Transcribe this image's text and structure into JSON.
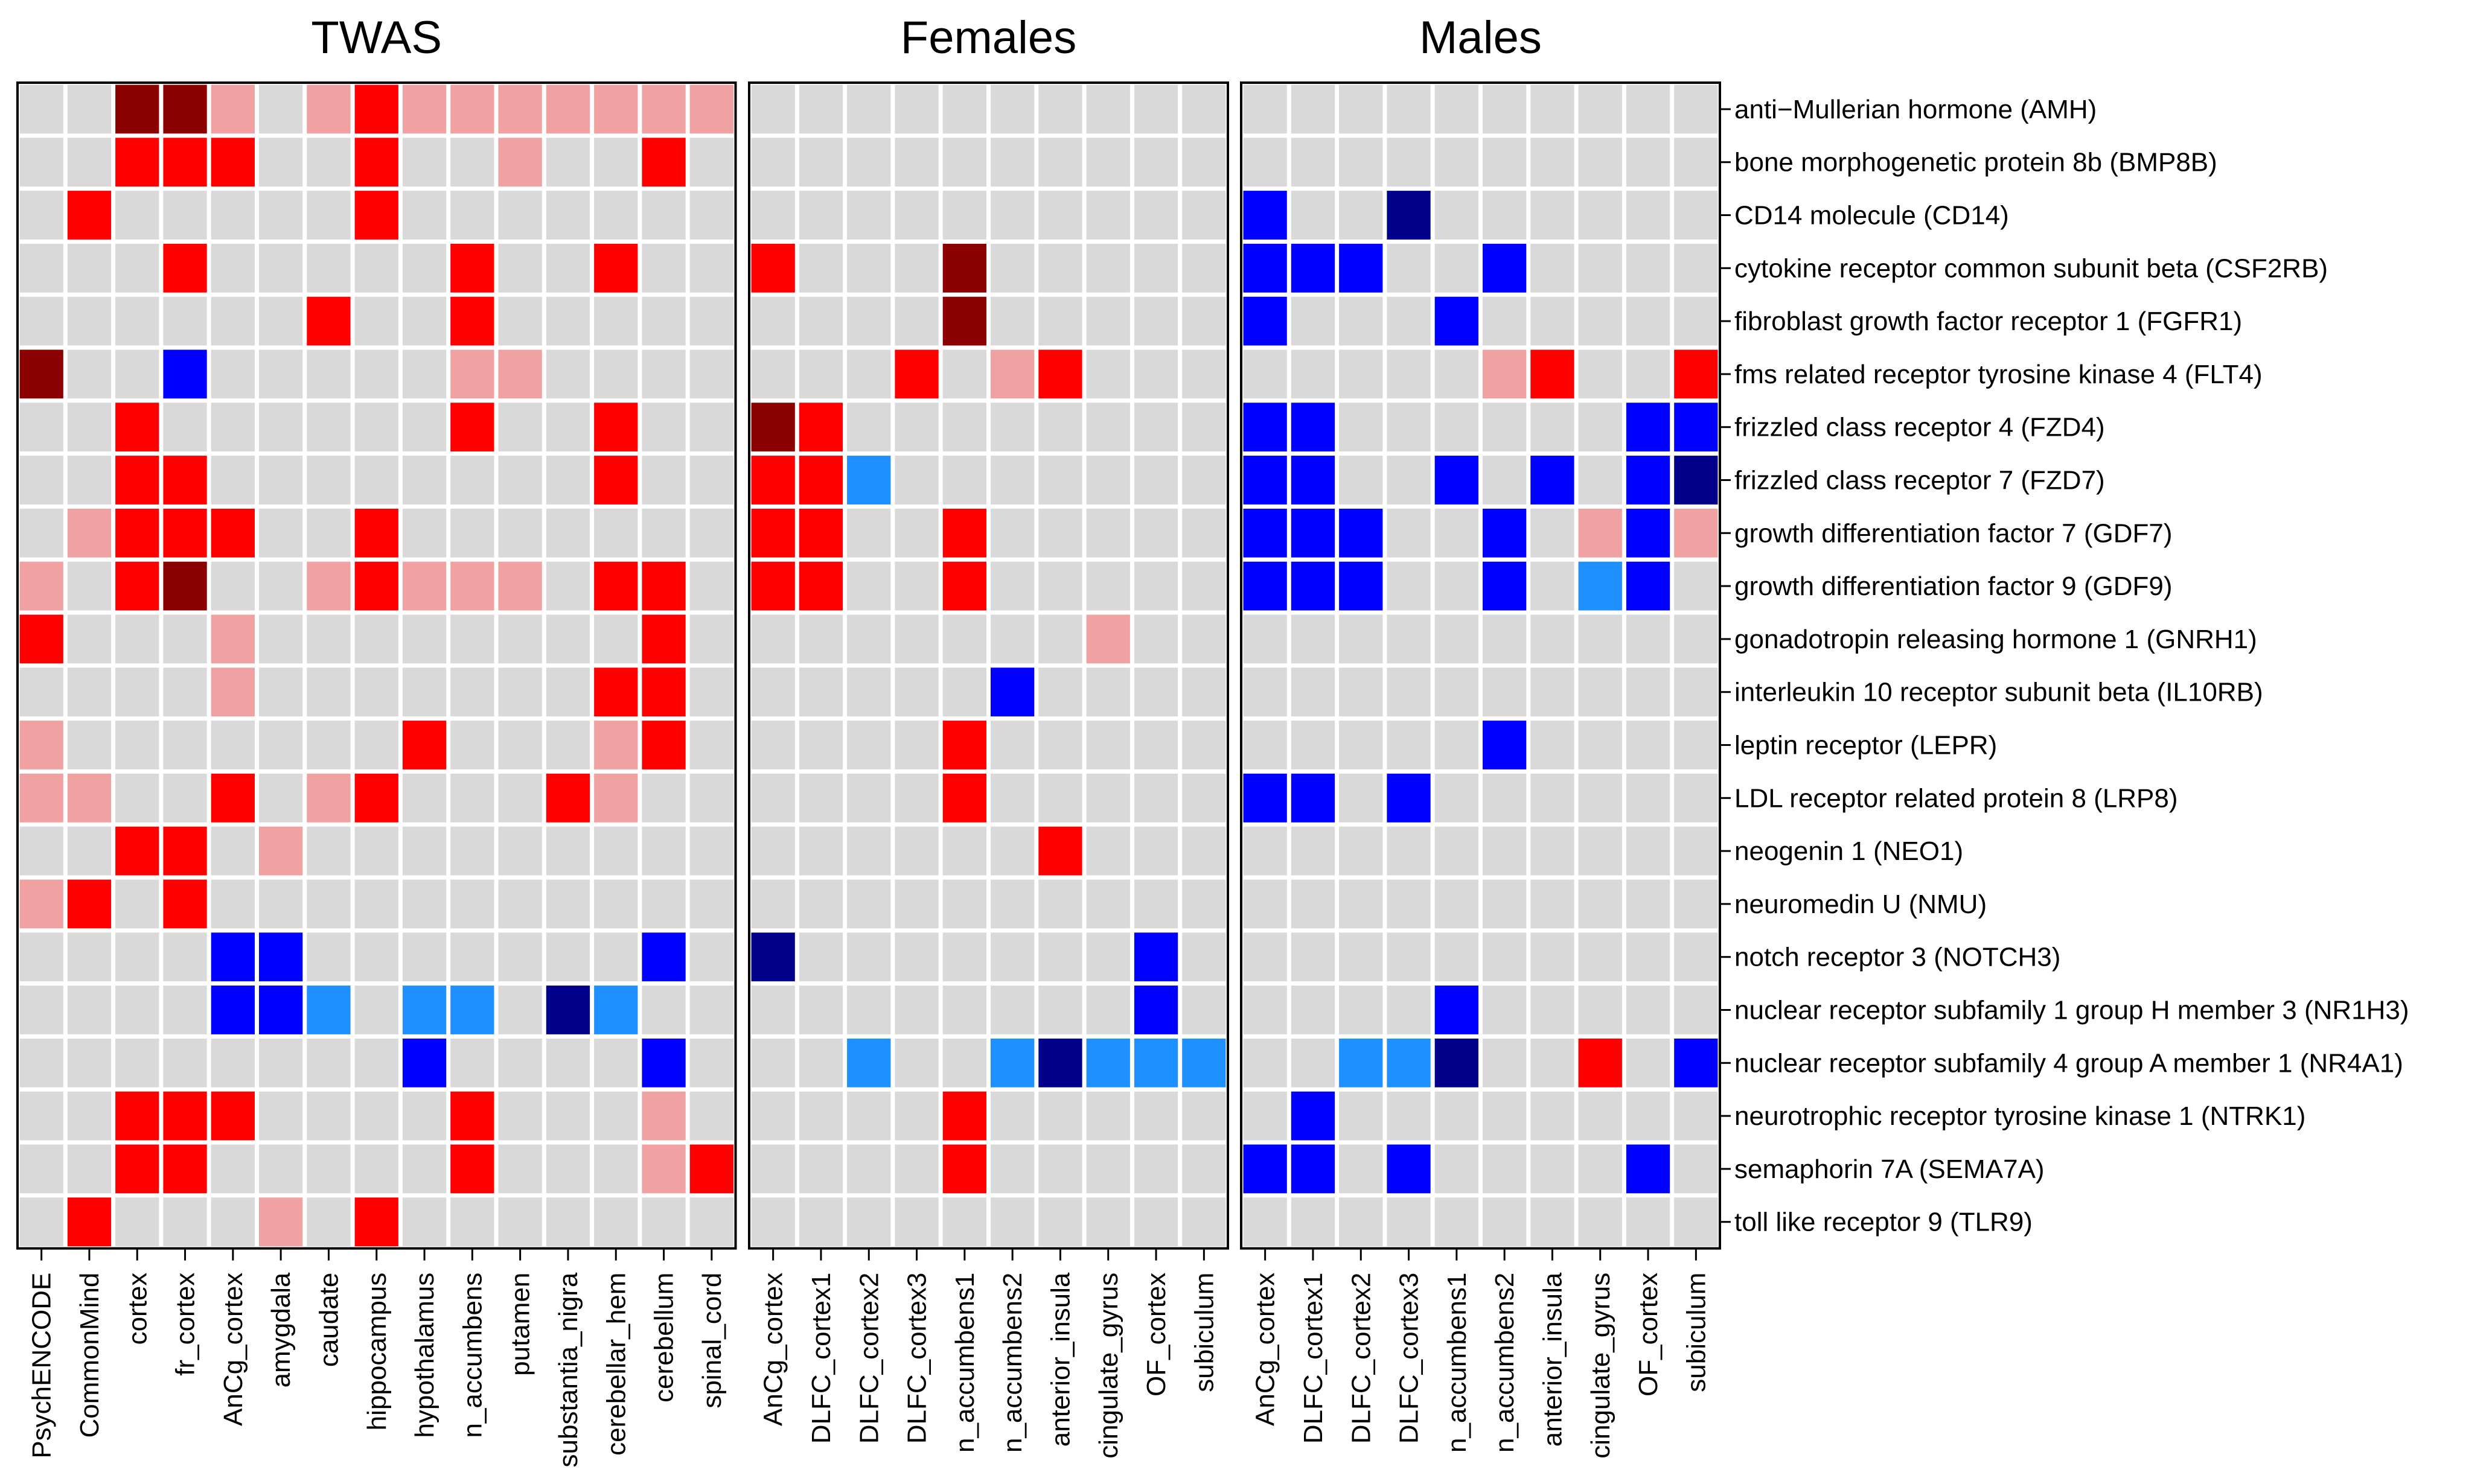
{
  "chart_data": {
    "type": "heatmap",
    "legend": "none",
    "colors": {
      "0": "#d9d9d9",
      "1": "#f0a1a1",
      "2": "#ff0000",
      "3": "#8b0000",
      "-1": "#1e90ff",
      "-2": "#0000ff",
      "-3": "#00008b",
      "grid": "#ffffff",
      "border": "#000000"
    },
    "rows": [
      "anti−Mullerian hormone (AMH)",
      "bone morphogenetic protein 8b (BMP8B)",
      "CD14 molecule (CD14)",
      "cytokine receptor common subunit beta (CSF2RB)",
      "fibroblast growth factor receptor 1 (FGFR1)",
      "fms related receptor tyrosine kinase 4 (FLT4)",
      "frizzled class receptor 4 (FZD4)",
      "frizzled class receptor 7 (FZD7)",
      "growth differentiation factor 7 (GDF7)",
      "growth differentiation factor 9 (GDF9)",
      "gonadotropin releasing hormone 1 (GNRH1)",
      "interleukin 10 receptor subunit beta (IL10RB)",
      "leptin receptor (LEPR)",
      "LDL receptor related protein 8 (LRP8)",
      "neogenin 1 (NEO1)",
      "neuromedin U (NMU)",
      "notch receptor 3 (NOTCH3)",
      "nuclear receptor subfamily 1 group H member 3 (NR1H3)",
      "nuclear receptor subfamily 4 group A member 1 (NR4A1)",
      "neurotrophic receptor tyrosine kinase 1 (NTRK1)",
      "semaphorin 7A (SEMA7A)",
      "toll like receptor 9 (TLR9)"
    ],
    "panels": [
      {
        "title": "TWAS",
        "columns": [
          "PsychENCODE",
          "CommonMind",
          "cortex",
          "fr_cortex",
          "AnCg_cortex",
          "amygdala",
          "caudate",
          "hippocampus",
          "hypothalamus",
          "n_accumbens",
          "putamen",
          "substantia_nigra",
          "cerebellar_hem",
          "cerebellum",
          "spinal_cord"
        ],
        "values": [
          [
            0,
            0,
            3,
            3,
            1,
            0,
            1,
            2,
            1,
            1,
            1,
            1,
            1,
            1,
            1
          ],
          [
            0,
            0,
            2,
            2,
            2,
            0,
            0,
            2,
            0,
            0,
            1,
            0,
            0,
            2,
            0
          ],
          [
            0,
            2,
            0,
            0,
            0,
            0,
            0,
            2,
            0,
            0,
            0,
            0,
            0,
            0,
            0
          ],
          [
            0,
            0,
            0,
            2,
            0,
            0,
            0,
            0,
            0,
            2,
            0,
            0,
            2,
            0,
            0
          ],
          [
            0,
            0,
            0,
            0,
            0,
            0,
            2,
            0,
            0,
            2,
            0,
            0,
            0,
            0,
            0
          ],
          [
            3,
            0,
            0,
            -2,
            0,
            0,
            0,
            0,
            0,
            1,
            1,
            0,
            0,
            0,
            0
          ],
          [
            0,
            0,
            2,
            0,
            0,
            0,
            0,
            0,
            0,
            2,
            0,
            0,
            2,
            0,
            0
          ],
          [
            0,
            0,
            2,
            2,
            0,
            0,
            0,
            0,
            0,
            0,
            0,
            0,
            2,
            0,
            0
          ],
          [
            0,
            1,
            2,
            2,
            2,
            0,
            0,
            2,
            0,
            0,
            0,
            0,
            0,
            0,
            0
          ],
          [
            1,
            0,
            2,
            3,
            0,
            0,
            1,
            2,
            1,
            1,
            1,
            0,
            2,
            2,
            0
          ],
          [
            2,
            0,
            0,
            0,
            1,
            0,
            0,
            0,
            0,
            0,
            0,
            0,
            0,
            2,
            0
          ],
          [
            0,
            0,
            0,
            0,
            1,
            0,
            0,
            0,
            0,
            0,
            0,
            0,
            2,
            2,
            0
          ],
          [
            1,
            0,
            0,
            0,
            0,
            0,
            0,
            0,
            2,
            0,
            0,
            0,
            1,
            2,
            0
          ],
          [
            1,
            1,
            0,
            0,
            2,
            0,
            1,
            2,
            0,
            0,
            0,
            2,
            1,
            0,
            0
          ],
          [
            0,
            0,
            2,
            2,
            0,
            1,
            0,
            0,
            0,
            0,
            0,
            0,
            0,
            0,
            0
          ],
          [
            1,
            2,
            0,
            2,
            0,
            0,
            0,
            0,
            0,
            0,
            0,
            0,
            0,
            0,
            0
          ],
          [
            0,
            0,
            0,
            0,
            -2,
            -2,
            0,
            0,
            0,
            0,
            0,
            0,
            0,
            -2,
            0
          ],
          [
            0,
            0,
            0,
            0,
            -2,
            -2,
            -1,
            0,
            -1,
            -1,
            0,
            -3,
            -1,
            0,
            0
          ],
          [
            0,
            0,
            0,
            0,
            0,
            0,
            0,
            0,
            -2,
            0,
            0,
            0,
            0,
            -2,
            0
          ],
          [
            0,
            0,
            2,
            2,
            2,
            0,
            0,
            0,
            0,
            2,
            0,
            0,
            0,
            1,
            0
          ],
          [
            0,
            0,
            2,
            2,
            0,
            0,
            0,
            0,
            0,
            2,
            0,
            0,
            0,
            1,
            2
          ],
          [
            0,
            2,
            0,
            0,
            0,
            1,
            0,
            2,
            0,
            0,
            0,
            0,
            0,
            0,
            0
          ]
        ]
      },
      {
        "title": "Females",
        "columns": [
          "AnCg_cortex",
          "DLFC_cortex1",
          "DLFC_cortex2",
          "DLFC_cortex3",
          "n_accumbens1",
          "n_accumbens2",
          "anterior_insula",
          "cingulate_gyrus",
          "OF_cortex",
          "subiculum"
        ],
        "values": [
          [
            0,
            0,
            0,
            0,
            0,
            0,
            0,
            0,
            0,
            0
          ],
          [
            0,
            0,
            0,
            0,
            0,
            0,
            0,
            0,
            0,
            0
          ],
          [
            0,
            0,
            0,
            0,
            0,
            0,
            0,
            0,
            0,
            0
          ],
          [
            2,
            0,
            0,
            0,
            3,
            0,
            0,
            0,
            0,
            0
          ],
          [
            0,
            0,
            0,
            0,
            3,
            0,
            0,
            0,
            0,
            0
          ],
          [
            0,
            0,
            0,
            2,
            0,
            1,
            2,
            0,
            0,
            0
          ],
          [
            3,
            2,
            0,
            0,
            0,
            0,
            0,
            0,
            0,
            0
          ],
          [
            2,
            2,
            -1,
            0,
            0,
            0,
            0,
            0,
            0,
            0
          ],
          [
            2,
            2,
            0,
            0,
            2,
            0,
            0,
            0,
            0,
            0
          ],
          [
            2,
            2,
            0,
            0,
            2,
            0,
            0,
            0,
            0,
            0
          ],
          [
            0,
            0,
            0,
            0,
            0,
            0,
            0,
            1,
            0,
            0
          ],
          [
            0,
            0,
            0,
            0,
            0,
            -2,
            0,
            0,
            0,
            0
          ],
          [
            0,
            0,
            0,
            0,
            2,
            0,
            0,
            0,
            0,
            0
          ],
          [
            0,
            0,
            0,
            0,
            2,
            0,
            0,
            0,
            0,
            0
          ],
          [
            0,
            0,
            0,
            0,
            0,
            0,
            2,
            0,
            0,
            0
          ],
          [
            0,
            0,
            0,
            0,
            0,
            0,
            0,
            0,
            0,
            0
          ],
          [
            -3,
            0,
            0,
            0,
            0,
            0,
            0,
            0,
            -2,
            0
          ],
          [
            0,
            0,
            0,
            0,
            0,
            0,
            0,
            0,
            -2,
            0
          ],
          [
            0,
            0,
            -1,
            0,
            0,
            -1,
            -3,
            -1,
            -1,
            -1
          ],
          [
            0,
            0,
            0,
            0,
            2,
            0,
            0,
            0,
            0,
            0
          ],
          [
            0,
            0,
            0,
            0,
            2,
            0,
            0,
            0,
            0,
            0
          ],
          [
            0,
            0,
            0,
            0,
            0,
            0,
            0,
            0,
            0,
            0
          ]
        ]
      },
      {
        "title": "Males",
        "columns": [
          "AnCg_cortex",
          "DLFC_cortex1",
          "DLFC_cortex2",
          "DLFC_cortex3",
          "n_accumbens1",
          "n_accumbens2",
          "anterior_insula",
          "cingulate_gyrus",
          "OF_cortex",
          "subiculum"
        ],
        "values": [
          [
            0,
            0,
            0,
            0,
            0,
            0,
            0,
            0,
            0,
            0
          ],
          [
            0,
            0,
            0,
            0,
            0,
            0,
            0,
            0,
            0,
            0
          ],
          [
            -2,
            0,
            0,
            -3,
            0,
            0,
            0,
            0,
            0,
            0
          ],
          [
            -2,
            -2,
            -2,
            0,
            0,
            -2,
            0,
            0,
            0,
            0
          ],
          [
            -2,
            0,
            0,
            0,
            -2,
            0,
            0,
            0,
            0,
            0
          ],
          [
            0,
            0,
            0,
            0,
            0,
            1,
            2,
            0,
            0,
            2
          ],
          [
            -2,
            -2,
            0,
            0,
            0,
            0,
            0,
            0,
            -2,
            -2
          ],
          [
            -2,
            -2,
            0,
            0,
            -2,
            0,
            -2,
            0,
            -2,
            -3
          ],
          [
            -2,
            -2,
            -2,
            0,
            0,
            -2,
            0,
            1,
            -2,
            1
          ],
          [
            -2,
            -2,
            -2,
            0,
            0,
            -2,
            0,
            -1,
            -2,
            0
          ],
          [
            0,
            0,
            0,
            0,
            0,
            0,
            0,
            0,
            0,
            0
          ],
          [
            0,
            0,
            0,
            0,
            0,
            0,
            0,
            0,
            0,
            0
          ],
          [
            0,
            0,
            0,
            0,
            0,
            -2,
            0,
            0,
            0,
            0
          ],
          [
            -2,
            -2,
            0,
            -2,
            0,
            0,
            0,
            0,
            0,
            0
          ],
          [
            0,
            0,
            0,
            0,
            0,
            0,
            0,
            0,
            0,
            0
          ],
          [
            0,
            0,
            0,
            0,
            0,
            0,
            0,
            0,
            0,
            0
          ],
          [
            0,
            0,
            0,
            0,
            0,
            0,
            0,
            0,
            0,
            0
          ],
          [
            0,
            0,
            0,
            0,
            -2,
            0,
            0,
            0,
            0,
            0
          ],
          [
            0,
            0,
            -1,
            -1,
            -3,
            0,
            0,
            2,
            0,
            -2
          ],
          [
            0,
            -2,
            0,
            0,
            0,
            0,
            0,
            0,
            0,
            0
          ],
          [
            -2,
            -2,
            0,
            -2,
            0,
            0,
            0,
            0,
            -2,
            0
          ],
          [
            0,
            0,
            0,
            0,
            0,
            0,
            0,
            0,
            0,
            0
          ]
        ]
      }
    ]
  }
}
